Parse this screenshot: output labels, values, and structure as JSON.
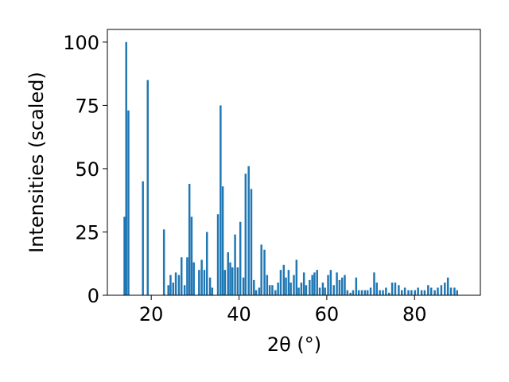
{
  "chart_data": {
    "type": "bar",
    "title": "",
    "xlabel": "2θ (°)",
    "ylabel": "Intensities (scaled)",
    "xlim": [
      10,
      95
    ],
    "ylim": [
      0,
      105
    ],
    "xticks": [
      20,
      40,
      60,
      80
    ],
    "yticks": [
      0,
      25,
      50,
      75,
      100
    ],
    "grid": false,
    "bar_color": "#1f77b4",
    "bar_width": 0.45,
    "x": [
      13.9,
      14.3,
      14.8,
      18.1,
      19.2,
      22.9,
      23.9,
      24.4,
      25.0,
      25.6,
      26.3,
      26.9,
      27.6,
      28.2,
      28.7,
      29.2,
      29.7,
      30.9,
      31.5,
      32.1,
      32.7,
      33.4,
      33.9,
      35.2,
      35.8,
      36.3,
      36.8,
      37.5,
      38.0,
      38.5,
      39.1,
      39.7,
      40.3,
      41.0,
      41.5,
      42.2,
      42.8,
      43.4,
      43.9,
      44.6,
      45.1,
      45.8,
      46.4,
      47.0,
      47.6,
      48.3,
      48.9,
      49.5,
      50.2,
      50.7,
      51.3,
      51.8,
      52.5,
      53.1,
      53.6,
      54.2,
      54.8,
      55.3,
      56.1,
      56.7,
      57.2,
      57.8,
      58.4,
      59.1,
      59.6,
      60.3,
      60.9,
      61.6,
      62.3,
      62.9,
      63.5,
      64.1,
      64.7,
      65.4,
      66.0,
      66.7,
      67.3,
      68.0,
      68.7,
      69.3,
      70.0,
      70.8,
      71.4,
      72.1,
      72.8,
      73.5,
      74.2,
      74.9,
      75.6,
      76.4,
      77.1,
      77.8,
      78.6,
      79.3,
      80.1,
      80.8,
      81.6,
      82.3,
      83.1,
      83.8,
      84.6,
      85.3,
      86.1,
      86.9,
      87.6,
      88.3,
      89.1,
      89.7
    ],
    "values": [
      31,
      100,
      73,
      45,
      85,
      26,
      4,
      8,
      5,
      9,
      8,
      15,
      4,
      15,
      44,
      31,
      13,
      10,
      14,
      10,
      25,
      7,
      3,
      32,
      75,
      43,
      10,
      17,
      13,
      11,
      24,
      11,
      29,
      7,
      48,
      51,
      42,
      6,
      2,
      3,
      20,
      18,
      8,
      4,
      4,
      2,
      5,
      10,
      12,
      7,
      10,
      5,
      8,
      14,
      3,
      5,
      9,
      4,
      6,
      8,
      9,
      10,
      3,
      5,
      3,
      8,
      10,
      4,
      9,
      6,
      7,
      8,
      2,
      1,
      2,
      7,
      2,
      2,
      2,
      2,
      3,
      9,
      5,
      2,
      2,
      3,
      1,
      5,
      5,
      4,
      2,
      3,
      2,
      2,
      2,
      3,
      2,
      2,
      4,
      3,
      2,
      3,
      4,
      5,
      7,
      3,
      3,
      2
    ]
  }
}
